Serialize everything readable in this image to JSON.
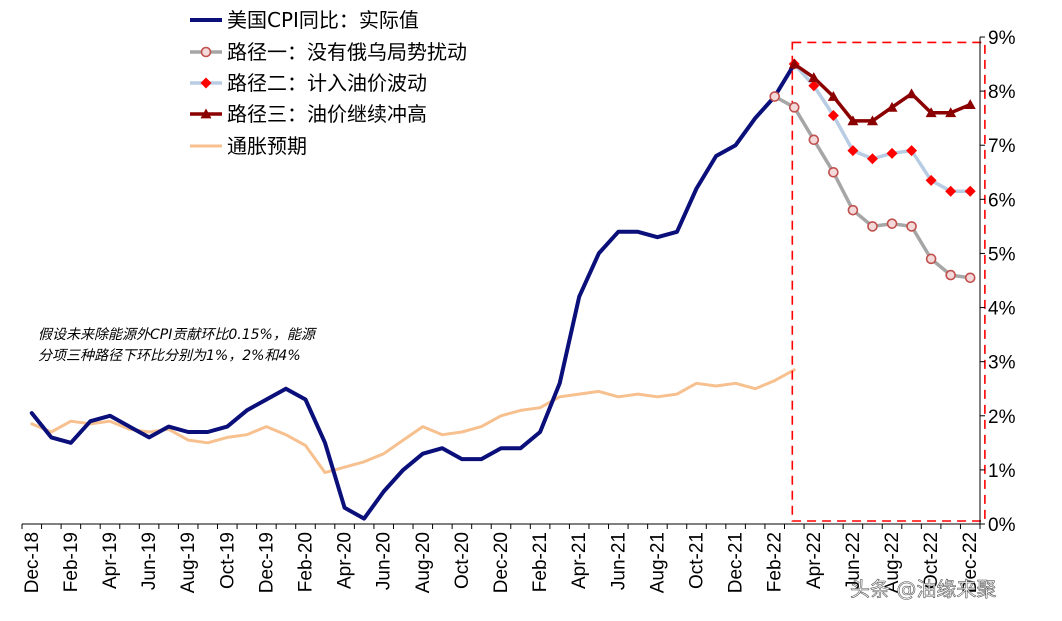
{
  "chart_data": {
    "type": "line",
    "x": [
      "2018-12",
      "2019-01",
      "2019-02",
      "2019-03",
      "2019-04",
      "2019-05",
      "2019-06",
      "2019-07",
      "2019-08",
      "2019-09",
      "2019-10",
      "2019-11",
      "2019-12",
      "2020-01",
      "2020-02",
      "2020-03",
      "2020-04",
      "2020-05",
      "2020-06",
      "2020-07",
      "2020-08",
      "2020-09",
      "2020-10",
      "2020-11",
      "2020-12",
      "2021-01",
      "2021-02",
      "2021-03",
      "2021-04",
      "2021-05",
      "2021-06",
      "2021-07",
      "2021-08",
      "2021-09",
      "2021-10",
      "2021-11",
      "2021-12",
      "2022-01",
      "2022-02",
      "2022-03",
      "2022-04",
      "2022-05",
      "2022-06",
      "2022-07",
      "2022-08",
      "2022-09",
      "2022-10",
      "2022-11",
      "2022-12"
    ],
    "x_tick_labels": [
      {
        "x": "2018-12",
        "label": "Dec-18"
      },
      {
        "x": "2019-02",
        "label": "Feb-19"
      },
      {
        "x": "2019-04",
        "label": "Apr-19"
      },
      {
        "x": "2019-06",
        "label": "Jun-19"
      },
      {
        "x": "2019-08",
        "label": "Aug-19"
      },
      {
        "x": "2019-10",
        "label": "Oct-19"
      },
      {
        "x": "2019-12",
        "label": "Dec-19"
      },
      {
        "x": "2020-02",
        "label": "Feb-20"
      },
      {
        "x": "2020-04",
        "label": "Apr-20"
      },
      {
        "x": "2020-06",
        "label": "Jun-20"
      },
      {
        "x": "2020-08",
        "label": "Aug-20"
      },
      {
        "x": "2020-10",
        "label": "Oct-20"
      },
      {
        "x": "2020-12",
        "label": "Dec-20"
      },
      {
        "x": "2021-02",
        "label": "Feb-21"
      },
      {
        "x": "2021-04",
        "label": "Apr-21"
      },
      {
        "x": "2021-06",
        "label": "Jun-21"
      },
      {
        "x": "2021-08",
        "label": "Aug-21"
      },
      {
        "x": "2021-10",
        "label": "Oct-21"
      },
      {
        "x": "2021-12",
        "label": "Dec-21"
      },
      {
        "x": "2022-02",
        "label": "Feb-22"
      },
      {
        "x": "2022-04",
        "label": "Apr-22"
      },
      {
        "x": "2022-06",
        "label": "Jun-22"
      },
      {
        "x": "2022-08",
        "label": "Aug-22"
      },
      {
        "x": "2022-10",
        "label": "Oct-22"
      },
      {
        "x": "2022-12",
        "label": "Dec-22"
      }
    ],
    "ylim": [
      0,
      9
    ],
    "y_ticks": [
      0,
      1,
      2,
      3,
      4,
      5,
      6,
      7,
      8,
      9
    ],
    "y_tick_labels": [
      "0%",
      "1%",
      "2%",
      "3%",
      "4%",
      "5%",
      "6%",
      "7%",
      "8%",
      "9%"
    ],
    "y_axis_side": "right",
    "grid": false,
    "legend_position": "top-left",
    "title": "",
    "xlabel": "",
    "ylabel": "",
    "series": [
      {
        "name": "美国CPI同比：实际值",
        "color": "#0a0f7a",
        "marker": "none",
        "x": [
          "2018-12",
          "2019-01",
          "2019-02",
          "2019-03",
          "2019-04",
          "2019-05",
          "2019-06",
          "2019-07",
          "2019-08",
          "2019-09",
          "2019-10",
          "2019-11",
          "2019-12",
          "2020-01",
          "2020-02",
          "2020-03",
          "2020-04",
          "2020-05",
          "2020-06",
          "2020-07",
          "2020-08",
          "2020-09",
          "2020-10",
          "2020-11",
          "2020-12",
          "2021-01",
          "2021-02",
          "2021-03",
          "2021-04",
          "2021-05",
          "2021-06",
          "2021-07",
          "2021-08",
          "2021-09",
          "2021-10",
          "2021-11",
          "2021-12",
          "2022-01",
          "2022-02",
          "2022-03"
        ],
        "values": [
          2.05,
          1.6,
          1.5,
          1.9,
          2.0,
          1.8,
          1.6,
          1.8,
          1.7,
          1.7,
          1.8,
          2.1,
          2.3,
          2.5,
          2.3,
          1.5,
          0.3,
          0.1,
          0.6,
          1.0,
          1.3,
          1.4,
          1.2,
          1.2,
          1.4,
          1.4,
          1.7,
          2.6,
          4.2,
          5.0,
          5.4,
          5.4,
          5.3,
          5.4,
          6.2,
          6.8,
          7.0,
          7.5,
          7.9,
          8.5
        ]
      },
      {
        "name": "路径一：没有俄乌局势扰动",
        "color": "#a6a6a6",
        "marker": "open-circle",
        "marker_color": "#c0504d",
        "x": [
          "2022-02",
          "2022-03",
          "2022-04",
          "2022-05",
          "2022-06",
          "2022-07",
          "2022-08",
          "2022-09",
          "2022-10",
          "2022-11",
          "2022-12"
        ],
        "values": [
          7.9,
          7.7,
          7.1,
          6.5,
          5.8,
          5.5,
          5.55,
          5.5,
          4.9,
          4.6,
          4.55
        ]
      },
      {
        "name": "路径二：计入油价波动",
        "color": "#b8cce4",
        "marker": "diamond",
        "marker_color": "#ff0000",
        "x": [
          "2022-03",
          "2022-04",
          "2022-05",
          "2022-06",
          "2022-07",
          "2022-08",
          "2022-09",
          "2022-10",
          "2022-11",
          "2022-12"
        ],
        "values": [
          8.5,
          8.1,
          7.55,
          6.9,
          6.75,
          6.85,
          6.9,
          6.35,
          6.15,
          6.15
        ]
      },
      {
        "name": "路径三：油价继续冲高",
        "color": "#8b0000",
        "marker": "triangle",
        "marker_color": "#8b0000",
        "x": [
          "2022-03",
          "2022-04",
          "2022-05",
          "2022-06",
          "2022-07",
          "2022-08",
          "2022-09",
          "2022-10",
          "2022-11",
          "2022-12"
        ],
        "values": [
          8.5,
          8.25,
          7.9,
          7.45,
          7.45,
          7.7,
          7.95,
          7.6,
          7.6,
          7.75
        ]
      },
      {
        "name": "通胀预期",
        "color": "#f7c08f",
        "marker": "none",
        "x": [
          "2018-12",
          "2019-01",
          "2019-02",
          "2019-03",
          "2019-04",
          "2019-05",
          "2019-06",
          "2019-07",
          "2019-08",
          "2019-09",
          "2019-10",
          "2019-11",
          "2019-12",
          "2020-01",
          "2020-02",
          "2020-03",
          "2020-04",
          "2020-05",
          "2020-06",
          "2020-07",
          "2020-08",
          "2020-09",
          "2020-10",
          "2020-11",
          "2020-12",
          "2021-01",
          "2021-02",
          "2021-03",
          "2021-04",
          "2021-05",
          "2021-06",
          "2021-07",
          "2021-08",
          "2021-09",
          "2021-10",
          "2021-11",
          "2021-12",
          "2022-01",
          "2022-02",
          "2022-03"
        ],
        "values": [
          1.85,
          1.7,
          1.9,
          1.85,
          1.9,
          1.75,
          1.7,
          1.75,
          1.55,
          1.5,
          1.6,
          1.65,
          1.8,
          1.65,
          1.45,
          0.95,
          1.05,
          1.15,
          1.3,
          1.55,
          1.8,
          1.65,
          1.7,
          1.8,
          2.0,
          2.1,
          2.15,
          2.35,
          2.4,
          2.45,
          2.35,
          2.4,
          2.35,
          2.4,
          2.6,
          2.55,
          2.6,
          2.5,
          2.65,
          2.85
        ]
      }
    ],
    "annotations": [
      {
        "type": "text",
        "text_lines": [
          "假设未来除能源外CPI贡献环比0.15%，能源",
          "分项三种路径下环比分别为1%，2%和4%"
        ]
      },
      {
        "type": "dashed-box",
        "color": "#ff0000",
        "x_from": "2022-03",
        "x_to": "2022-12",
        "y_from": 0,
        "y_to": 8.9
      }
    ]
  },
  "watermark": {
    "text": "头条 @油缘来聚"
  }
}
